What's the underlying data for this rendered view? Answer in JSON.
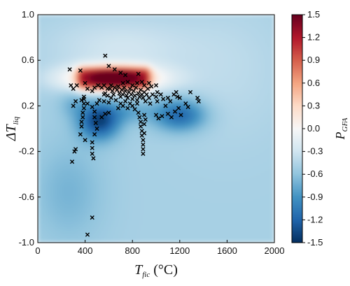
{
  "chart_data": {
    "type": "heatmap",
    "title": "",
    "xlabel": {
      "main": "T",
      "sub": "fic",
      "unit": " (°C)"
    },
    "ylabel": {
      "main": "ΔT",
      "sub": "liq"
    },
    "colorbar_label": {
      "main": "P",
      "sub": "GFA"
    },
    "xlim": [
      0,
      2000
    ],
    "ylim": [
      -1.0,
      1.0
    ],
    "clim": [
      -1.5,
      1.5
    ],
    "x_ticks": [
      0,
      400,
      800,
      1200,
      1600,
      2000
    ],
    "x_tick_labels": [
      "0",
      "400",
      "800",
      "1200",
      "1600",
      "2000"
    ],
    "y_ticks": [
      -1.0,
      -0.6,
      -0.2,
      0.2,
      0.6,
      1.0
    ],
    "y_tick_labels": [
      "-1.0",
      "-0.6",
      "-0.2",
      "0.2",
      "0.6",
      "1.0"
    ],
    "colorbar_ticks": [
      1.5,
      1.2,
      0.9,
      0.6,
      0.3,
      0.0,
      -0.3,
      -0.6,
      -0.9,
      -1.2,
      -1.5
    ],
    "colorbar_tick_labels": [
      "1.5",
      "1.2",
      "0.9",
      "0.6",
      "0.3",
      "0.0",
      "-0.3",
      "-0.6",
      "-0.9",
      "-1.2",
      "-1.5"
    ],
    "colormap": [
      "#053061",
      "#2166ac",
      "#4393c3",
      "#92c5de",
      "#d1e5f0",
      "#f7f7f7",
      "#fddbc7",
      "#f4a582",
      "#d6604d",
      "#b2182b",
      "#67001f"
    ],
    "marker": "x",
    "marker_color": "#000000",
    "points": [
      [
        270,
        0.52
      ],
      [
        360,
        0.51
      ],
      [
        570,
        0.64
      ],
      [
        600,
        0.55
      ],
      [
        650,
        0.52
      ],
      [
        700,
        0.49
      ],
      [
        740,
        0.47
      ],
      [
        850,
        0.48
      ],
      [
        280,
        0.38
      ],
      [
        300,
        0.35
      ],
      [
        330,
        0.38
      ],
      [
        400,
        0.4
      ],
      [
        420,
        0.35
      ],
      [
        460,
        0.33
      ],
      [
        480,
        0.36
      ],
      [
        510,
        0.38
      ],
      [
        540,
        0.36
      ],
      [
        560,
        0.38
      ],
      [
        590,
        0.35
      ],
      [
        620,
        0.38
      ],
      [
        650,
        0.36
      ],
      [
        680,
        0.37
      ],
      [
        720,
        0.4
      ],
      [
        760,
        0.41
      ],
      [
        800,
        0.38
      ],
      [
        840,
        0.4
      ],
      [
        880,
        0.41
      ],
      [
        900,
        0.38
      ],
      [
        940,
        0.4
      ],
      [
        960,
        0.37
      ],
      [
        1000,
        0.38
      ],
      [
        1010,
        0.32
      ],
      [
        300,
        0.2
      ],
      [
        320,
        0.24
      ],
      [
        370,
        0.25
      ],
      [
        390,
        0.28
      ],
      [
        420,
        0.22
      ],
      [
        460,
        0.19
      ],
      [
        500,
        0.22
      ],
      [
        520,
        0.25
      ],
      [
        560,
        0.24
      ],
      [
        600,
        0.23
      ],
      [
        640,
        0.3
      ],
      [
        670,
        0.34
      ],
      [
        690,
        0.31
      ],
      [
        700,
        0.28
      ],
      [
        710,
        0.34
      ],
      [
        720,
        0.3
      ],
      [
        730,
        0.36
      ],
      [
        740,
        0.33
      ],
      [
        750,
        0.29
      ],
      [
        760,
        0.27
      ],
      [
        770,
        0.32
      ],
      [
        780,
        0.35
      ],
      [
        790,
        0.3
      ],
      [
        800,
        0.26
      ],
      [
        810,
        0.33
      ],
      [
        820,
        0.29
      ],
      [
        830,
        0.36
      ],
      [
        840,
        0.25
      ],
      [
        850,
        0.31
      ],
      [
        860,
        0.28
      ],
      [
        870,
        0.34
      ],
      [
        880,
        0.3
      ],
      [
        890,
        0.27
      ],
      [
        900,
        0.32
      ],
      [
        910,
        0.24
      ],
      [
        920,
        0.3
      ],
      [
        930,
        0.35
      ],
      [
        940,
        0.27
      ],
      [
        950,
        0.22
      ],
      [
        970,
        0.3
      ],
      [
        700,
        0.22
      ],
      [
        720,
        0.2
      ],
      [
        740,
        0.24
      ],
      [
        760,
        0.18
      ],
      [
        780,
        0.22
      ],
      [
        800,
        0.2
      ],
      [
        820,
        0.17
      ],
      [
        840,
        0.22
      ],
      [
        680,
        0.18
      ],
      [
        660,
        0.25
      ],
      [
        620,
        0.27
      ],
      [
        590,
        0.29
      ],
      [
        560,
        0.3
      ],
      [
        630,
        0.33
      ],
      [
        610,
        0.35
      ],
      [
        570,
        0.31
      ],
      [
        1000,
        0.28
      ],
      [
        1010,
        0.24
      ],
      [
        1040,
        0.3
      ],
      [
        1060,
        0.26
      ],
      [
        1080,
        0.2
      ],
      [
        1100,
        0.27
      ],
      [
        1120,
        0.24
      ],
      [
        1150,
        0.3
      ],
      [
        1170,
        0.32
      ],
      [
        1180,
        0.28
      ],
      [
        1200,
        0.27
      ],
      [
        1250,
        0.22
      ],
      [
        1270,
        0.19
      ],
      [
        1290,
        0.32
      ],
      [
        1350,
        0.27
      ],
      [
        1360,
        0.24
      ],
      [
        1000,
        0.12
      ],
      [
        1020,
        0.09
      ],
      [
        1050,
        0.11
      ],
      [
        1100,
        0.13
      ],
      [
        1130,
        0.1
      ],
      [
        1160,
        0.15
      ],
      [
        1190,
        0.18
      ],
      [
        1210,
        0.12
      ],
      [
        390,
        0.26
      ],
      [
        390,
        0.22
      ],
      [
        390,
        0.18
      ],
      [
        380,
        0.14
      ],
      [
        380,
        0.1
      ],
      [
        370,
        0.06
      ],
      [
        370,
        0.02
      ],
      [
        480,
        0.15
      ],
      [
        480,
        0.1
      ],
      [
        490,
        0.05
      ],
      [
        500,
        0.0
      ],
      [
        480,
        -0.05
      ],
      [
        460,
        -0.12
      ],
      [
        460,
        -0.17
      ],
      [
        460,
        -0.22
      ],
      [
        470,
        -0.26
      ],
      [
        320,
        -0.18
      ],
      [
        310,
        -0.2
      ],
      [
        290,
        -0.29
      ],
      [
        360,
        -0.05
      ],
      [
        400,
        -0.1
      ],
      [
        540,
        0.1
      ],
      [
        570,
        0.13
      ],
      [
        600,
        0.14
      ],
      [
        850,
        0.14
      ],
      [
        860,
        0.1
      ],
      [
        870,
        0.06
      ],
      [
        870,
        0.02
      ],
      [
        880,
        -0.02
      ],
      [
        880,
        -0.06
      ],
      [
        890,
        -0.1
      ],
      [
        890,
        -0.14
      ],
      [
        890,
        -0.18
      ],
      [
        890,
        -0.22
      ],
      [
        900,
        0.04
      ],
      [
        900,
        -0.04
      ],
      [
        910,
        0.08
      ],
      [
        900,
        0.12
      ],
      [
        420,
        -0.93
      ],
      [
        460,
        -0.78
      ]
    ]
  }
}
